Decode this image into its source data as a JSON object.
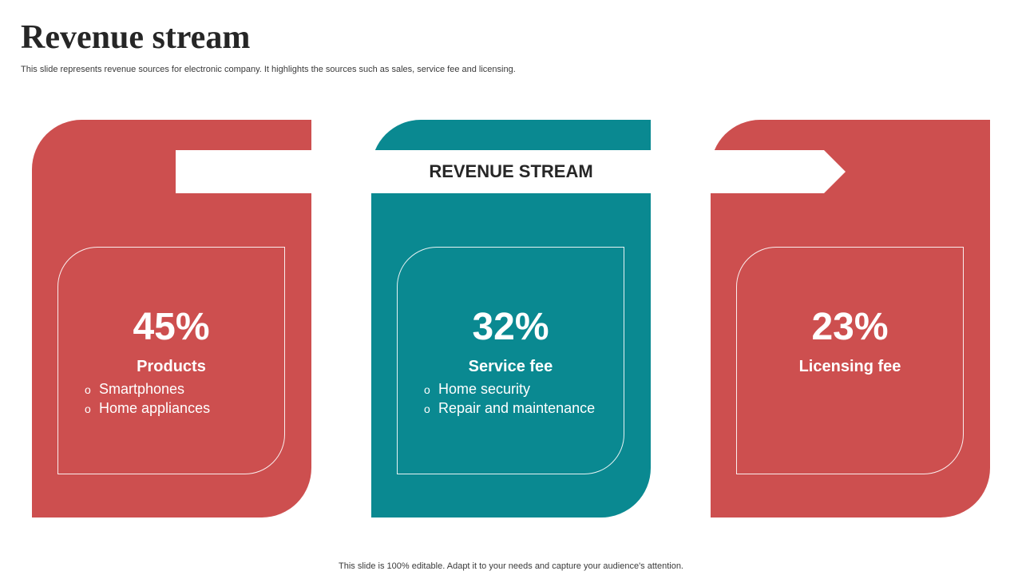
{
  "header": {
    "title": "Revenue stream",
    "subtitle": "This slide represents revenue sources for electronic company. It highlights the sources such as sales, service fee and licensing."
  },
  "banner": {
    "label": "REVENUE STREAM"
  },
  "colors": {
    "red": "#cd4f4f",
    "teal": "#0a8991"
  },
  "cards": [
    {
      "percent": "45%",
      "label": "Products",
      "items": [
        "Smartphones",
        "Home appliances"
      ],
      "color": "red"
    },
    {
      "percent": "32%",
      "label": "Service fee",
      "items": [
        "Home security",
        "Repair and maintenance"
      ],
      "color": "teal"
    },
    {
      "percent": "23%",
      "label": "Licensing fee",
      "items": [],
      "color": "red"
    }
  ],
  "bullet_symbol": "o",
  "footer": "This slide is 100% editable. Adapt it to your needs and capture your audience's attention."
}
